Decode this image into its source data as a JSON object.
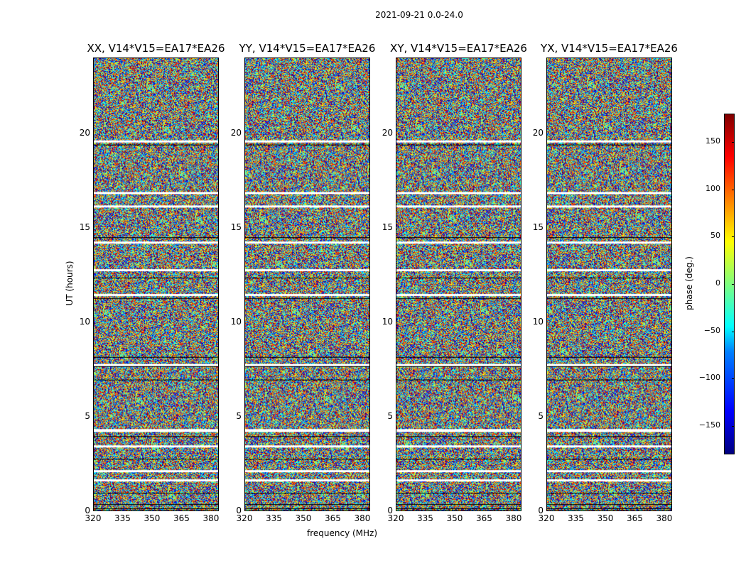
{
  "suptitle": "2021-09-21 0.0-24.0",
  "chart_data": {
    "type": "heatmap",
    "title": "2021-09-21 0.0-24.0",
    "xlabel": "frequency (MHz)",
    "ylabel": "UT (hours)",
    "xlim": [
      320,
      384
    ],
    "ylim": [
      0,
      24
    ],
    "xticks": [
      "320",
      "335",
      "350",
      "365",
      "380"
    ],
    "xtick_values": [
      320,
      335,
      350,
      365,
      380
    ],
    "yticks": [
      "0",
      "5",
      "10",
      "15",
      "20"
    ],
    "ytick_values": [
      0,
      5,
      10,
      15,
      20
    ],
    "panels": [
      {
        "title": "XX, V14*V15=EA17*EA26"
      },
      {
        "title": "YY, V14*V15=EA17*EA26"
      },
      {
        "title": "XY, V14*V15=EA17*EA26"
      },
      {
        "title": "YX, V14*V15=EA17*EA26"
      }
    ],
    "colorbar": {
      "label": "phase (deg.)",
      "range": [
        -180,
        180
      ],
      "ticks": [
        "150",
        "100",
        "50",
        "0",
        "−50",
        "−100",
        "−150"
      ],
      "tick_values": [
        150,
        100,
        50,
        0,
        -50,
        -100,
        -150
      ],
      "colormap": "jet"
    }
  }
}
